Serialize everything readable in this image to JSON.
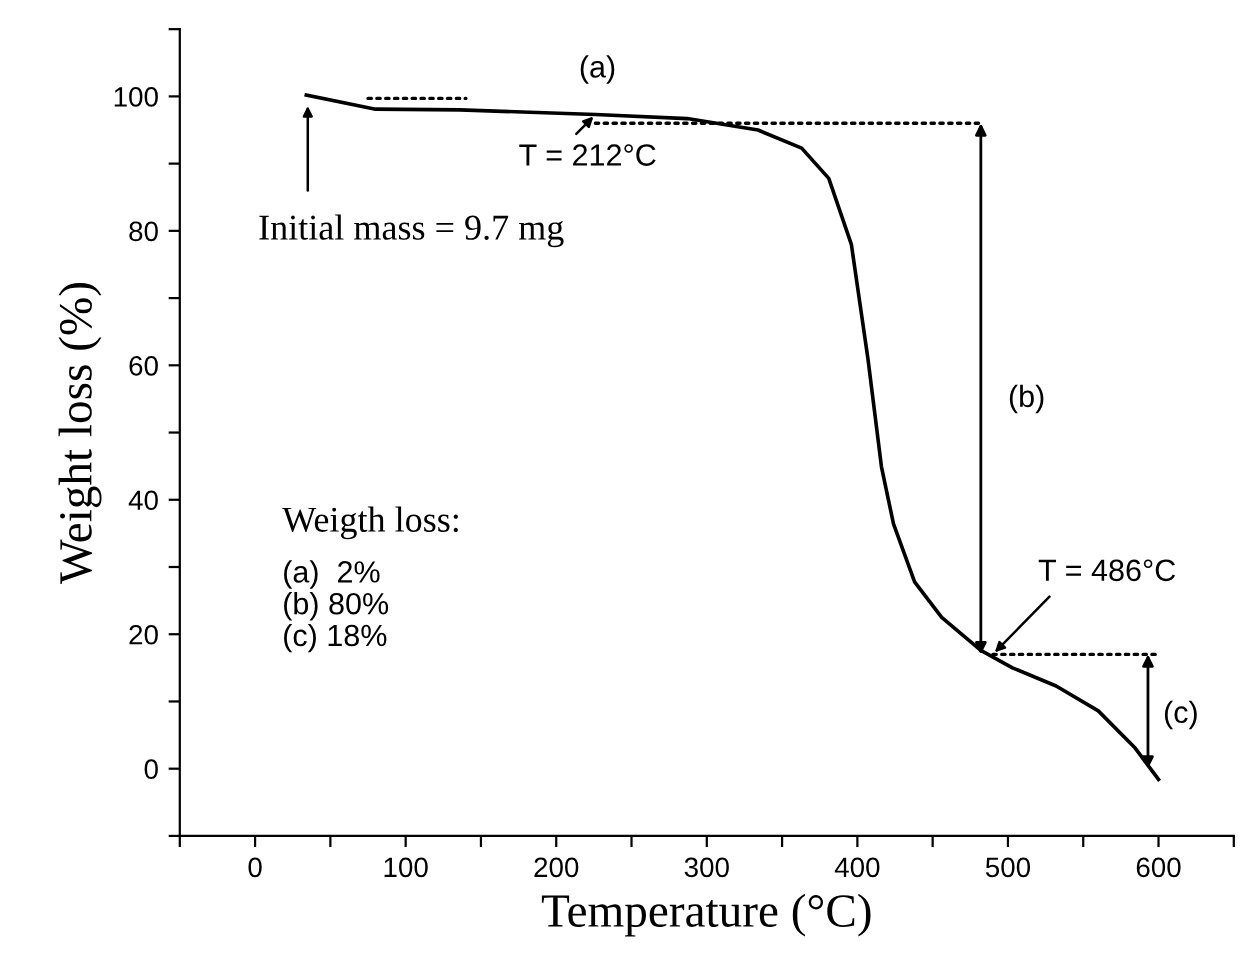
{
  "chart_data": {
    "type": "line",
    "xlabel": "Temperature (°C)",
    "ylabel": "Weight loss (%)",
    "xlim": [
      -50,
      650
    ],
    "ylim": [
      -10,
      110
    ],
    "xticks": [
      {
        "value": -50,
        "label": null
      },
      0,
      {
        "value": 50,
        "label": null
      },
      100,
      {
        "value": 150,
        "label": null
      },
      200,
      {
        "value": 250,
        "label": null
      },
      300,
      {
        "value": 350,
        "label": null
      },
      400,
      {
        "value": 450,
        "label": null
      },
      500,
      {
        "value": 550,
        "label": null
      },
      600,
      {
        "value": 650,
        "label": null
      }
    ],
    "yticks": [
      {
        "value": -10,
        "label": null
      },
      0,
      {
        "value": 10,
        "label": null
      },
      20,
      {
        "value": 30,
        "label": null
      },
      40,
      {
        "value": 50,
        "label": null
      },
      60,
      {
        "value": 70,
        "label": null
      },
      80,
      {
        "value": 90,
        "label": null
      },
      100,
      {
        "value": 110,
        "label": null
      }
    ],
    "grid": false,
    "legend": false,
    "marker": "none",
    "series": [
      {
        "color": "#000000",
        "line_style": "solid",
        "x": [
          34,
          80,
          136,
          226,
          287,
          334,
          363,
          381,
          396,
          407,
          416,
          424,
          438,
          456,
          482,
          503,
          532,
          560,
          584,
          600
        ],
        "values": [
          100.2,
          98.1,
          98.0,
          97.3,
          96.7,
          95.0,
          92.3,
          87.8,
          78,
          61,
          44.9,
          36.4,
          27.8,
          22.5,
          17.6,
          15.0,
          12.3,
          8.6,
          3.2,
          -1.6
        ]
      },
      {
        "color": "#000000",
        "line_style": "dotted",
        "x": [
          75,
          140
        ],
        "values": [
          99.7,
          99.7
        ]
      },
      {
        "color": "#000000",
        "line_style": "dotted",
        "x": [
          226,
          482
        ],
        "values": [
          96,
          96
        ]
      },
      {
        "color": "#000000",
        "line_style": "dotted",
        "x": [
          490,
          600
        ],
        "values": [
          17,
          17
        ]
      },
      {
        "color": "#000000",
        "line_style": "solid",
        "x": [
          482,
          482
        ],
        "values": [
          96,
          17
        ]
      },
      {
        "color": "#000000",
        "line_style": "solid",
        "x": [
          593,
          593
        ],
        "values": [
          17,
          0
        ]
      }
    ],
    "annotations": [
      "(a)",
      {
        "text": "T = 212°C",
        "x": 226,
        "y": 97.3
      },
      {
        "text": "Initial mass = 9.7 mg",
        "x": 35,
        "y": 99
      },
      "(b)",
      {
        "text": "T = 486°C",
        "x": 490,
        "y": 17
      },
      "(c)",
      "Weigth loss:",
      "(a)  2%\n(b) 80%\n(c) 18%"
    ]
  }
}
